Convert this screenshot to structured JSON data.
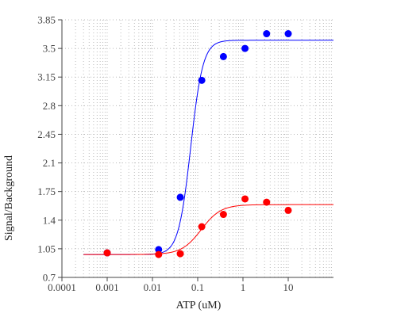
{
  "chart_data": {
    "type": "scatter",
    "title": "",
    "xlabel": "ATP (uM)",
    "ylabel": "Signal/Background",
    "x_scale": "log",
    "xlim": [
      0.0001,
      100
    ],
    "ylim": [
      0.7,
      3.85
    ],
    "grid": true,
    "x_ticks": [
      {
        "value": 0.0001,
        "label": "0.0001"
      },
      {
        "value": 0.001,
        "label": "0.001"
      },
      {
        "value": 0.01,
        "label": "0.01"
      },
      {
        "value": 0.1,
        "label": "0.1"
      },
      {
        "value": 1,
        "label": "1"
      },
      {
        "value": 10,
        "label": "10"
      }
    ],
    "y_ticks": [
      {
        "value": 0.7,
        "label": "0.7"
      },
      {
        "value": 1.05,
        "label": "1.05"
      },
      {
        "value": 1.4,
        "label": "1.4"
      },
      {
        "value": 1.75,
        "label": "1.75"
      },
      {
        "value": 2.1,
        "label": "2.1"
      },
      {
        "value": 2.45,
        "label": "2.45"
      },
      {
        "value": 2.8,
        "label": "2.8"
      },
      {
        "value": 3.15,
        "label": "3.15"
      },
      {
        "value": 3.5,
        "label": "3.5"
      },
      {
        "value": 3.85,
        "label": "3.85"
      }
    ],
    "series": [
      {
        "color": "#0000ff",
        "points": [
          {
            "x": 0.001,
            "y": 1.0
          },
          {
            "x": 0.0137,
            "y": 1.04
          },
          {
            "x": 0.0412,
            "y": 1.68
          },
          {
            "x": 0.123,
            "y": 3.11
          },
          {
            "x": 0.37,
            "y": 3.4
          },
          {
            "x": 1.11,
            "y": 3.5
          },
          {
            "x": 3.33,
            "y": 3.68
          },
          {
            "x": 10,
            "y": 3.68
          }
        ],
        "fit": {
          "bottom": 0.98,
          "top": 3.6,
          "ec50": 0.07,
          "hill": 3.2
        }
      },
      {
        "color": "#ff0000",
        "points": [
          {
            "x": 0.001,
            "y": 1.0
          },
          {
            "x": 0.0137,
            "y": 0.98
          },
          {
            "x": 0.0412,
            "y": 0.99
          },
          {
            "x": 0.123,
            "y": 1.32
          },
          {
            "x": 0.37,
            "y": 1.47
          },
          {
            "x": 1.11,
            "y": 1.66
          },
          {
            "x": 3.33,
            "y": 1.62
          },
          {
            "x": 10,
            "y": 1.52
          }
        ],
        "fit": {
          "bottom": 0.98,
          "top": 1.59,
          "ec50": 0.12,
          "hill": 2.0
        }
      }
    ]
  }
}
